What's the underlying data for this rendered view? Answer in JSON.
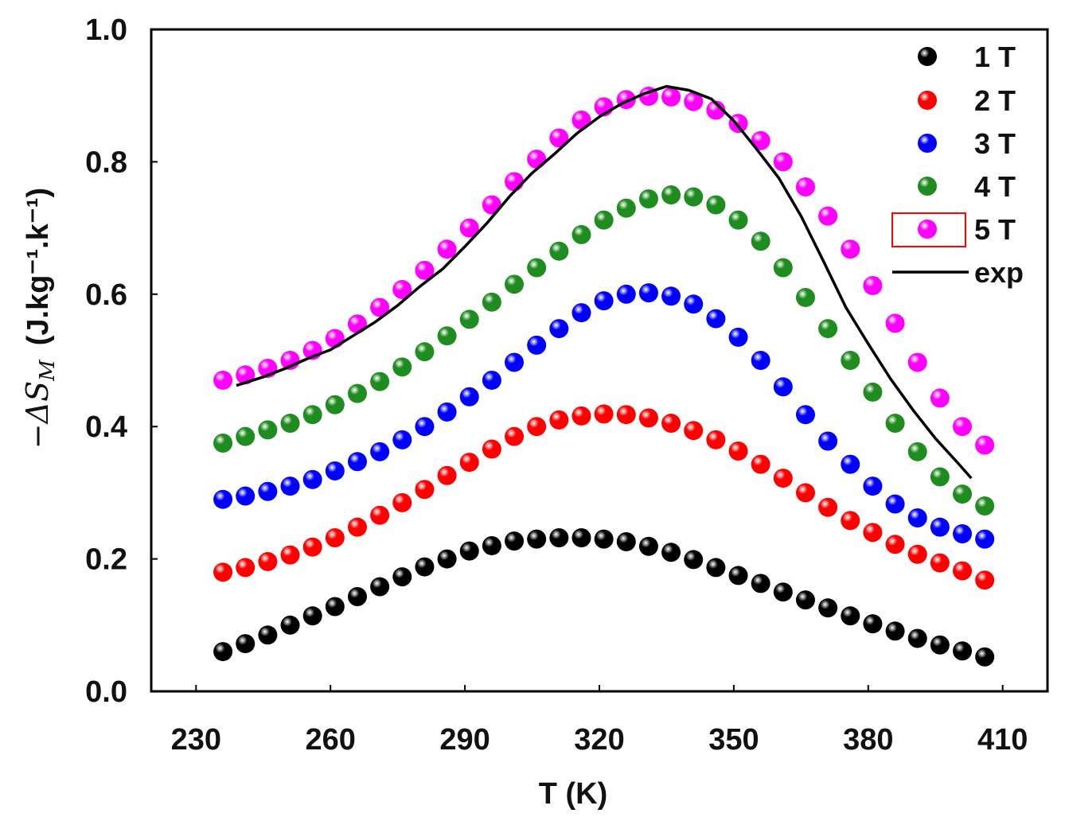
{
  "chart_data": {
    "type": "scatter",
    "title": "",
    "xlabel": "T (K)",
    "ylabel_prefix": "−ΔS",
    "ylabel_subscript": "M",
    "ylabel_units": "(J.kg⁻¹.k⁻¹)",
    "xlim": [
      220,
      420
    ],
    "ylim": [
      0.0,
      1.0
    ],
    "xticks": [
      "230",
      "260",
      "290",
      "320",
      "350",
      "380",
      "410"
    ],
    "xtick_values": [
      230,
      260,
      290,
      320,
      350,
      380,
      410
    ],
    "yticks": [
      "0.0",
      "0.2",
      "0.4",
      "0.6",
      "0.8",
      "1.0"
    ],
    "ytick_values": [
      0.0,
      0.2,
      0.4,
      0.6,
      0.8,
      1.0
    ],
    "x": [
      236,
      241,
      246,
      251,
      256,
      261,
      266,
      271,
      276,
      281,
      286,
      291,
      296,
      301,
      306,
      311,
      316,
      321,
      326,
      331,
      336,
      341,
      346,
      351,
      356,
      361,
      366,
      371,
      376,
      381,
      386,
      391,
      396,
      401,
      406
    ],
    "series": [
      {
        "name": "1 T",
        "color": "#000000",
        "values": [
          0.06,
          0.072,
          0.085,
          0.1,
          0.114,
          0.128,
          0.143,
          0.158,
          0.173,
          0.188,
          0.2,
          0.212,
          0.22,
          0.227,
          0.23,
          0.232,
          0.232,
          0.23,
          0.226,
          0.219,
          0.21,
          0.199,
          0.187,
          0.175,
          0.163,
          0.15,
          0.138,
          0.126,
          0.114,
          0.102,
          0.091,
          0.08,
          0.07,
          0.061,
          0.052
        ]
      },
      {
        "name": "2 T",
        "color": "#ff0000",
        "values": [
          0.18,
          0.187,
          0.196,
          0.206,
          0.218,
          0.232,
          0.248,
          0.266,
          0.285,
          0.305,
          0.326,
          0.346,
          0.366,
          0.385,
          0.4,
          0.41,
          0.416,
          0.419,
          0.418,
          0.413,
          0.405,
          0.394,
          0.38,
          0.363,
          0.343,
          0.322,
          0.3,
          0.278,
          0.258,
          0.24,
          0.222,
          0.207,
          0.194,
          0.182,
          0.168
        ]
      },
      {
        "name": "3 T",
        "color": "#0000ff",
        "values": [
          0.29,
          0.295,
          0.302,
          0.31,
          0.32,
          0.333,
          0.347,
          0.362,
          0.38,
          0.4,
          0.422,
          0.445,
          0.47,
          0.497,
          0.523,
          0.548,
          0.572,
          0.59,
          0.6,
          0.602,
          0.597,
          0.585,
          0.563,
          0.535,
          0.5,
          0.46,
          0.418,
          0.378,
          0.343,
          0.31,
          0.283,
          0.262,
          0.248,
          0.238,
          0.23
        ]
      },
      {
        "name": "4 T",
        "color": "#1e8c1e",
        "values": [
          0.375,
          0.385,
          0.395,
          0.405,
          0.418,
          0.433,
          0.45,
          0.468,
          0.49,
          0.513,
          0.537,
          0.562,
          0.588,
          0.615,
          0.64,
          0.665,
          0.69,
          0.712,
          0.73,
          0.744,
          0.75,
          0.747,
          0.735,
          0.712,
          0.68,
          0.64,
          0.595,
          0.548,
          0.5,
          0.452,
          0.405,
          0.362,
          0.324,
          0.298,
          0.28
        ]
      },
      {
        "name": "5 T",
        "color": "#ff00ff",
        "values": [
          0.47,
          0.478,
          0.488,
          0.5,
          0.515,
          0.533,
          0.555,
          0.58,
          0.607,
          0.636,
          0.668,
          0.7,
          0.735,
          0.77,
          0.804,
          0.836,
          0.863,
          0.883,
          0.894,
          0.899,
          0.898,
          0.891,
          0.878,
          0.858,
          0.832,
          0.8,
          0.762,
          0.718,
          0.668,
          0.613,
          0.556,
          0.497,
          0.443,
          0.4,
          0.372
        ]
      }
    ],
    "exp_line": {
      "name": "exp",
      "color": "#000000",
      "x": [
        239,
        245,
        250,
        255,
        260,
        265,
        270,
        275,
        280,
        285,
        290,
        295,
        300,
        305,
        310,
        315,
        320,
        325,
        330,
        335,
        340,
        345,
        350,
        355,
        360,
        365,
        370,
        375,
        380,
        385,
        390,
        395,
        400,
        403
      ],
      "y": [
        0.462,
        0.475,
        0.488,
        0.503,
        0.516,
        0.537,
        0.558,
        0.583,
        0.612,
        0.638,
        0.672,
        0.708,
        0.748,
        0.783,
        0.812,
        0.843,
        0.868,
        0.888,
        0.903,
        0.914,
        0.908,
        0.895,
        0.862,
        0.82,
        0.776,
        0.718,
        0.65,
        0.58,
        0.525,
        0.472,
        0.425,
        0.382,
        0.345,
        0.322
      ]
    },
    "legend": {
      "position": "top-right",
      "highlighted_entry": "5 T",
      "highlight_color": "#ff0000"
    },
    "grid": false
  }
}
